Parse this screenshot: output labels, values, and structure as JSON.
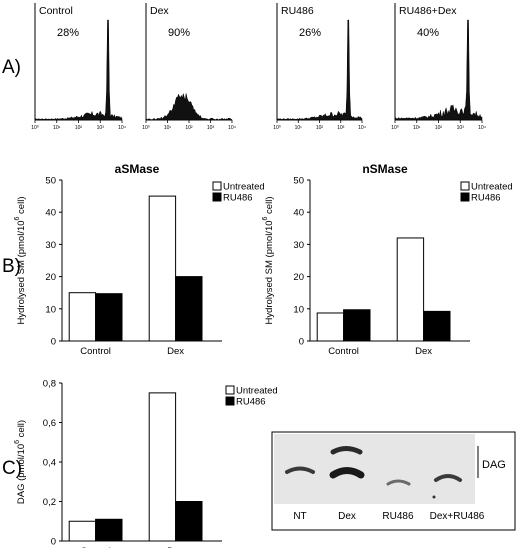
{
  "panel_labels": {
    "a": "A)",
    "b": "B)",
    "c": "C)"
  },
  "gel": {
    "lane_labels": [
      "NT",
      "Dex",
      "RU486",
      "Dex+RU486"
    ],
    "band_label": "DAG"
  },
  "chart_data": [
    {
      "type": "histogram",
      "panel": "A",
      "label": "Control",
      "percent": "28%",
      "x_ticks": [
        "10⁰",
        "10¹",
        "10²",
        "10³",
        "10⁴"
      ],
      "x_scale": "log",
      "peak_position_decade": 3.35,
      "profile": "sharp single peak with low broad baseline"
    },
    {
      "type": "histogram",
      "panel": "A",
      "label": "Dex",
      "percent": "90%",
      "x_ticks": [
        "10⁰",
        "10¹",
        "10²",
        "10³",
        "10⁴"
      ],
      "x_scale": "log",
      "peak_position_decade": 1.7,
      "profile": "broad low hump without sharp peak"
    },
    {
      "type": "histogram",
      "panel": "A",
      "label": "RU486",
      "percent": "26%",
      "x_ticks": [
        "10⁰",
        "10¹",
        "10²",
        "10³",
        "10⁴"
      ],
      "x_scale": "log",
      "peak_position_decade": 3.35,
      "profile": "sharp single peak with low broad baseline"
    },
    {
      "type": "histogram",
      "panel": "A",
      "label": "RU486+Dex",
      "percent": "40%",
      "x_ticks": [
        "10⁰",
        "10¹",
        "10²",
        "10³",
        "10⁴"
      ],
      "x_scale": "log",
      "peak_position_decade": 3.35,
      "profile": "sharp peak with raised broad baseline"
    },
    {
      "type": "bar",
      "panel": "B",
      "title": "aSMase",
      "ylabel": "Hydrolysed SM (pmol/10",
      "ylabel_superscript": "6",
      "ylabel_suffix": " cell)",
      "categories": [
        "Control",
        "Dex"
      ],
      "series": [
        {
          "name": "Untreated",
          "values": [
            15,
            45
          ],
          "color": "#ffffff"
        },
        {
          "name": "RU486",
          "values": [
            14.7,
            20
          ],
          "color": "#000000"
        }
      ],
      "ylim": [
        0,
        50
      ],
      "yticks": [
        0,
        10,
        20,
        30,
        40,
        50
      ],
      "ytick_labels": [
        "0",
        "10",
        "20",
        "30",
        "40",
        "50"
      ],
      "legend": "top-right"
    },
    {
      "type": "bar",
      "panel": "B",
      "title": "nSMase",
      "ylabel": "Hydrolysed SM (pmol/10",
      "ylabel_superscript": "6",
      "ylabel_suffix": " cell)",
      "categories": [
        "Control",
        "Dex"
      ],
      "series": [
        {
          "name": "Untreated",
          "values": [
            8.7,
            32
          ],
          "color": "#ffffff"
        },
        {
          "name": "RU486",
          "values": [
            9.7,
            9.2
          ],
          "color": "#000000"
        }
      ],
      "ylim": [
        0,
        50
      ],
      "yticks": [
        0,
        10,
        20,
        30,
        40,
        50
      ],
      "ytick_labels": [
        "0",
        "10",
        "20",
        "30",
        "40",
        "50"
      ],
      "legend": "top-right"
    },
    {
      "type": "bar",
      "panel": "C",
      "title": "",
      "ylabel": "DAG (pmol/10",
      "ylabel_superscript": "6",
      "ylabel_suffix": " cell)",
      "categories": [
        "Control",
        "Dex"
      ],
      "series": [
        {
          "name": "Untreated",
          "values": [
            0.1,
            0.75
          ],
          "color": "#ffffff"
        },
        {
          "name": "RU486",
          "values": [
            0.11,
            0.2
          ],
          "color": "#000000"
        }
      ],
      "ylim": [
        0,
        0.8
      ],
      "yticks": [
        0,
        0.2,
        0.4,
        0.6,
        0.8
      ],
      "ytick_labels": [
        "0",
        "0,2",
        "0,4",
        "0,6",
        "0,8"
      ],
      "legend": "top-right"
    }
  ]
}
